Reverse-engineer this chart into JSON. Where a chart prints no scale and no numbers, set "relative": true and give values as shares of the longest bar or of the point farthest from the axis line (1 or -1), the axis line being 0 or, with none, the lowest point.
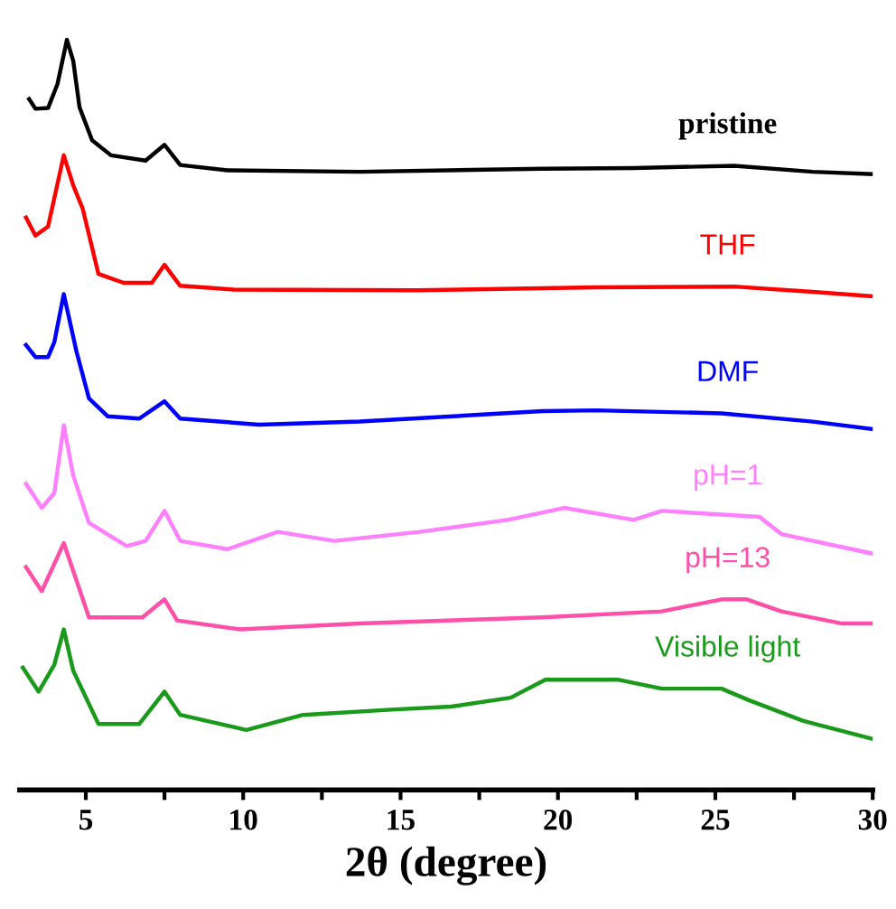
{
  "chart_data": {
    "type": "line",
    "relative": true,
    "xlabel": "2θ (degree)",
    "xlim": [
      2.9,
      30
    ],
    "xticks": [
      5,
      {
        "value": 7.5,
        "label": null
      },
      10,
      {
        "value": 12.5,
        "label": null
      },
      15,
      {
        "value": 17.5,
        "label": null
      },
      20,
      {
        "value": 22.5,
        "label": null
      },
      25,
      {
        "value": 27.5,
        "label": null
      },
      30
    ],
    "grid": false,
    "legend": false,
    "tick_labels": "x",
    "line_style": "solid",
    "marker": "none",
    "series": [
      {
        "name": "pristine",
        "color": "#000000",
        "x": [
          3.2,
          3.4,
          3.8,
          4.1,
          4.4,
          4.6,
          4.8,
          5.2,
          5.8,
          6.9,
          7.5,
          8.0,
          9.5,
          13.7,
          19.5,
          22.4,
          25.6,
          28.1,
          30
        ],
        "values": [
          0.921,
          0.908,
          0.909,
          0.941,
          1.0,
          0.972,
          0.91,
          0.866,
          0.846,
          0.839,
          0.86,
          0.833,
          0.826,
          0.824,
          0.828,
          0.829,
          0.832,
          0.824,
          0.821
        ]
      },
      {
        "name": "THF",
        "color": "#ff0000",
        "x": [
          3.1,
          3.4,
          3.8,
          4.3,
          4.6,
          4.9,
          5.4,
          6.2,
          7.1,
          7.5,
          8.0,
          9.7,
          15.5,
          21.2,
          25.6,
          28.1,
          30
        ],
        "values": [
          0.763,
          0.739,
          0.751,
          0.846,
          0.806,
          0.775,
          0.688,
          0.676,
          0.676,
          0.7,
          0.672,
          0.667,
          0.666,
          0.67,
          0.671,
          0.664,
          0.658
        ]
      },
      {
        "name": "DMF",
        "color": "#0000ff",
        "x": [
          3.1,
          3.4,
          3.8,
          4.0,
          4.3,
          4.7,
          5.1,
          5.7,
          6.7,
          7.5,
          8.0,
          10.5,
          13.7,
          19.5,
          21.2,
          25.2,
          28.1,
          30
        ],
        "values": [
          0.593,
          0.577,
          0.577,
          0.597,
          0.661,
          0.585,
          0.522,
          0.498,
          0.495,
          0.518,
          0.495,
          0.487,
          0.491,
          0.505,
          0.506,
          0.502,
          0.491,
          0.481
        ]
      },
      {
        "name": "pH=1",
        "color": "#ff80ff",
        "x": [
          3.1,
          3.6,
          4.0,
          4.3,
          4.6,
          5.1,
          6.3,
          6.9,
          7.5,
          8.0,
          9.5,
          11.1,
          12.9,
          15.6,
          18.4,
          20.2,
          22.4,
          23.3,
          26.4,
          27.1,
          30
        ],
        "values": [
          0.408,
          0.376,
          0.396,
          0.486,
          0.419,
          0.356,
          0.325,
          0.332,
          0.372,
          0.332,
          0.321,
          0.344,
          0.332,
          0.344,
          0.36,
          0.376,
          0.36,
          0.372,
          0.364,
          0.341,
          0.315
        ]
      },
      {
        "name": "pH=13",
        "color": "#ff4fa8",
        "x": [
          3.1,
          3.6,
          4.3,
          5.1,
          6.8,
          7.5,
          7.9,
          9.9,
          13.7,
          19.5,
          23.3,
          25.2,
          26.0,
          27.1,
          29.0,
          30
        ],
        "values": [
          0.297,
          0.265,
          0.329,
          0.23,
          0.23,
          0.254,
          0.226,
          0.214,
          0.222,
          0.23,
          0.238,
          0.254,
          0.254,
          0.238,
          0.222,
          0.222
        ]
      },
      {
        "name": "Visible light",
        "color": "#1a9a1a",
        "x": [
          3.0,
          3.5,
          4.0,
          4.3,
          4.6,
          5.4,
          6.7,
          7.5,
          8.0,
          10.1,
          11.9,
          14.7,
          16.6,
          18.5,
          19.6,
          21.9,
          23.3,
          25.2,
          26.1,
          27.8,
          30
        ],
        "values": [
          0.163,
          0.131,
          0.167,
          0.214,
          0.159,
          0.088,
          0.088,
          0.131,
          0.1,
          0.08,
          0.1,
          0.107,
          0.111,
          0.123,
          0.147,
          0.147,
          0.135,
          0.135,
          0.119,
          0.092,
          0.068
        ]
      }
    ]
  }
}
